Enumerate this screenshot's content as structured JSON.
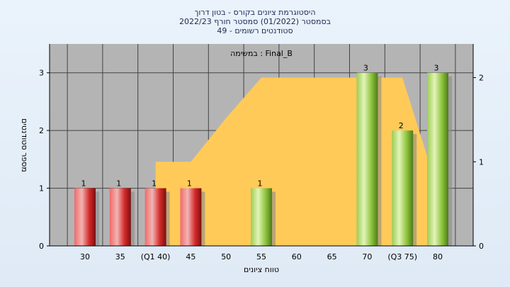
{
  "chart_data": {
    "type": "bar",
    "title_lines": [
      "היסטוגרמת ציונים בקורס - בטון דרוך",
      "בסמסטר  (01/2022)  סמסטר חורף 2022/23",
      "סטודנטים רשומים - 49"
    ],
    "legend": "במשימה : Final_B",
    "xlabel": "טווח ציונים",
    "ylabel": "מספר סטודנטים",
    "categories": [
      "30",
      "35",
      "(Q1 40)",
      "45",
      "50",
      "55",
      "60",
      "65",
      "70",
      "(Q3 75)",
      "80"
    ],
    "values": [
      1,
      1,
      1,
      1,
      0,
      1,
      0,
      0,
      3,
      2,
      3
    ],
    "bar_colors": [
      "red",
      "red",
      "red",
      "red",
      null,
      "green",
      null,
      null,
      "green",
      "green",
      "green"
    ],
    "ylim": [
      0,
      3.5
    ],
    "y_ticks": [
      0,
      1,
      2,
      3
    ],
    "y2_ticks": [
      0,
      1,
      2
    ],
    "y2lim": [
      0,
      2.4
    ],
    "area_values": [
      0,
      0,
      1,
      1,
      1.52,
      2,
      2,
      2,
      2,
      2,
      0.67
    ],
    "grid": true,
    "colors": {
      "red": "#d42a2a",
      "green": "#8cc43c",
      "area": "#ffca58",
      "plot_bg": "#b4b4b4"
    }
  }
}
